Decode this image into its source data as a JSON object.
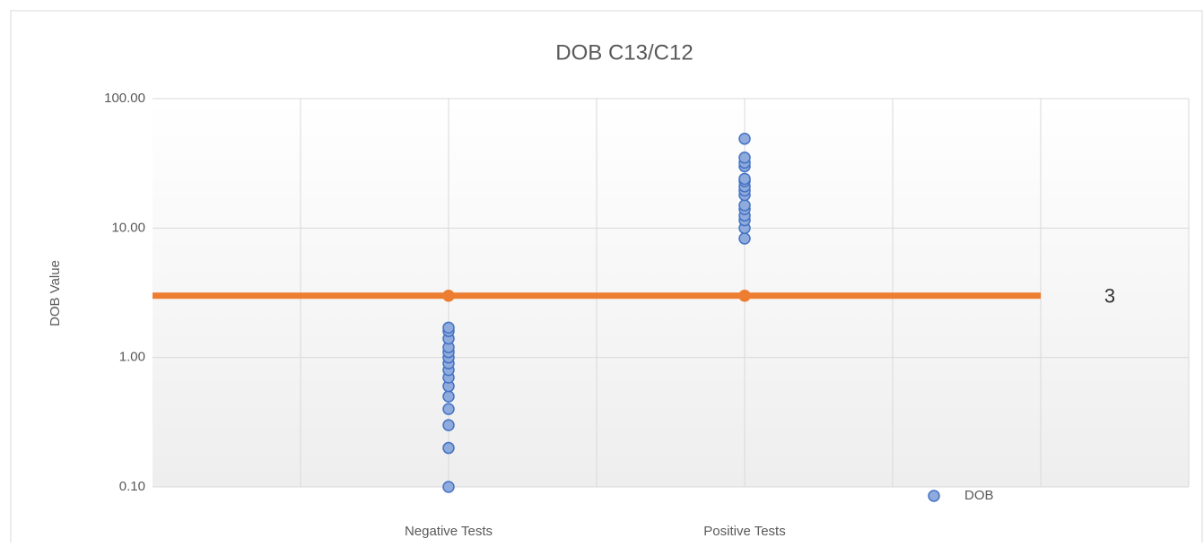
{
  "chart_data": {
    "type": "scatter",
    "title": "DOB C13/C12",
    "y_label": "DOB Value",
    "log_y": true,
    "ylim": [
      0.1,
      100
    ],
    "yticks": [
      {
        "value": 0.1,
        "label": "0.10"
      },
      {
        "value": 1,
        "label": "1.00"
      },
      {
        "value": 10,
        "label": "10.00"
      },
      {
        "value": 100,
        "label": "100.00"
      }
    ],
    "xlim": [
      0,
      7
    ],
    "xticks": [
      {
        "value": 2,
        "label": "Negative Tests"
      },
      {
        "value": 4,
        "label": "Positive Tests"
      }
    ],
    "x_gridlines": [
      1,
      2,
      3,
      4,
      5,
      6,
      7
    ],
    "grid": true,
    "legend": "lower right",
    "series": [
      {
        "name": "DOB",
        "color": "#8faadc",
        "x": [
          2,
          2,
          2,
          2,
          2,
          2,
          2,
          2,
          2,
          2,
          2,
          2,
          2,
          2,
          2,
          4,
          4,
          4,
          4,
          4,
          4,
          4,
          4,
          4,
          4,
          4,
          4,
          4,
          4,
          4
        ],
        "values": [
          0.1,
          0.2,
          0.3,
          0.4,
          0.5,
          0.6,
          0.7,
          0.8,
          0.9,
          1.0,
          1.1,
          1.2,
          1.4,
          1.6,
          1.7,
          8.3,
          10,
          11.5,
          12.5,
          14,
          15,
          18,
          19.5,
          21,
          23,
          24,
          30,
          32,
          35,
          49
        ]
      },
      {
        "color": "#ed7d31",
        "x": [
          2,
          4
        ],
        "values": [
          3,
          3
        ]
      }
    ],
    "threshold": {
      "x": [
        0,
        6
      ],
      "value": 3,
      "label": "3",
      "color": "#ed7d31"
    }
  }
}
